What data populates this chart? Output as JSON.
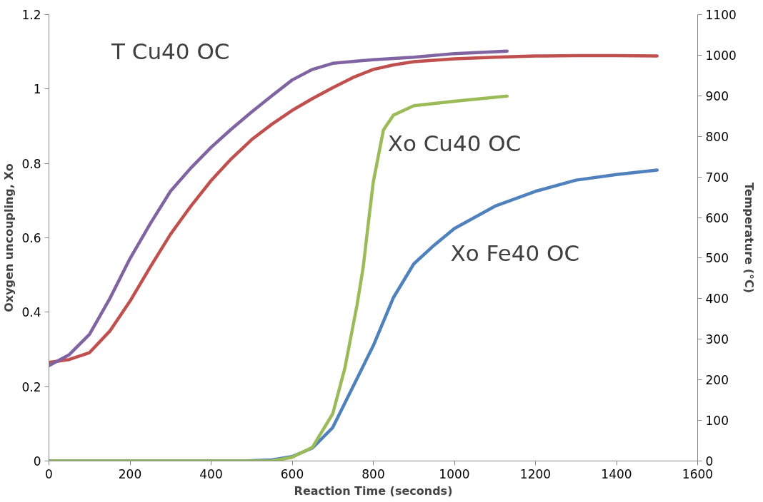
{
  "chart_data": {
    "type": "line",
    "xlabel": "Reaction Time (seconds)",
    "ylabel": "Oxygen uncoupling, Xo",
    "y2label": "Temperature (°C)",
    "xlim": [
      0,
      1600
    ],
    "xticks": [
      0,
      200,
      400,
      600,
      800,
      1000,
      1200,
      1400,
      1600
    ],
    "ylim": [
      0,
      1.2
    ],
    "yticks": [
      0,
      0.2,
      0.4,
      0.6,
      0.8,
      1,
      1.2
    ],
    "y2lim": [
      0,
      1100
    ],
    "y2ticks": [
      0,
      100,
      200,
      300,
      400,
      500,
      600,
      700,
      800,
      900,
      1000,
      1100
    ],
    "grid": false,
    "legend": false,
    "marker": "none",
    "line_style": "solid",
    "series": [
      {
        "color": "#c0504d",
        "axis": "y2",
        "x": [
          0,
          50,
          100,
          150,
          200,
          250,
          300,
          350,
          400,
          450,
          500,
          550,
          600,
          650,
          700,
          750,
          800,
          850,
          900,
          1000,
          1100,
          1200,
          1300,
          1400,
          1500
        ],
        "values": [
          243,
          250,
          267,
          320,
          394,
          478,
          559,
          628,
          691,
          745,
          792,
          830,
          864,
          893,
          920,
          945,
          965,
          976,
          984,
          991,
          995,
          998,
          999,
          999,
          998
        ]
      },
      {
        "name": "T Cu40 OC",
        "color": "#8064a2",
        "axis": "y2",
        "x": [
          0,
          50,
          100,
          150,
          200,
          250,
          300,
          350,
          400,
          450,
          500,
          550,
          600,
          650,
          700,
          800,
          900,
          1000,
          1130
        ],
        "values": [
          235,
          262,
          312,
          400,
          499,
          585,
          665,
          722,
          773,
          818,
          860,
          900,
          939,
          965,
          980,
          989,
          995,
          1004,
          1010
        ]
      },
      {
        "name": "Xo Fe40 OC",
        "color": "#4f81bd",
        "x": [
          0,
          480,
          550,
          600,
          650,
          700,
          750,
          800,
          850,
          900,
          950,
          1000,
          1100,
          1200,
          1300,
          1400,
          1500
        ],
        "values": [
          0,
          0,
          0.003,
          0.012,
          0.035,
          0.09,
          0.2,
          0.31,
          0.44,
          0.53,
          0.58,
          0.625,
          0.685,
          0.725,
          0.755,
          0.77,
          0.782
        ]
      },
      {
        "name": "Xo Cu40 OC",
        "color": "#9bbb59",
        "x": [
          0,
          550,
          600,
          650,
          700,
          730,
          760,
          775,
          790,
          800,
          825,
          850,
          900,
          1000,
          1130
        ],
        "values": [
          0,
          0,
          0.01,
          0.037,
          0.127,
          0.25,
          0.42,
          0.52,
          0.66,
          0.75,
          0.89,
          0.93,
          0.955,
          0.967,
          0.981
        ]
      }
    ]
  }
}
